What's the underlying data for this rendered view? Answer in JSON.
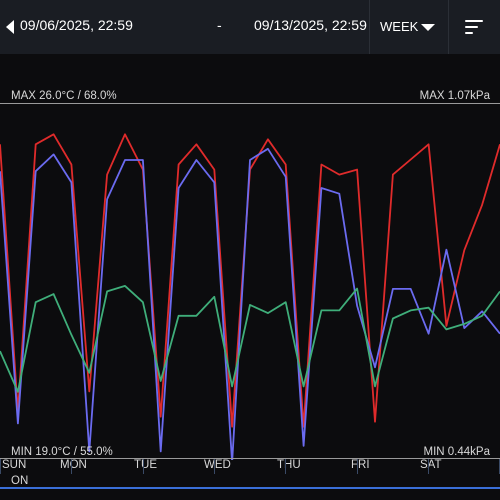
{
  "header": {
    "start_date": "09/06/2025, 22:59",
    "separator": "-",
    "end_date": "09/13/2025, 22:59",
    "range": "WEEK",
    "icons": {
      "back": "chevron-left-icon",
      "range": "caret-down-icon",
      "menu": "sort-lines-icon"
    }
  },
  "scale": {
    "max_left": "MAX 26.0°C / 68.0%",
    "max_right": "MAX 1.07kPa",
    "min_left": "MIN 19.0°C / 55.0%",
    "min_right": "MIN 0.44kPa"
  },
  "days": [
    "SUN",
    "MON",
    "TUE",
    "WED",
    "THU",
    "FRI",
    "SAT"
  ],
  "status": {
    "label": "ON",
    "color": "#3a6fd8"
  },
  "colors": {
    "temperature": "#e02b2b",
    "vpd": "#6b6bf0",
    "humidity": "#3fae7a",
    "background": "#0c0c0e"
  },
  "chart_data": {
    "type": "line",
    "x": [
      0,
      6,
      12,
      18,
      24,
      30,
      36,
      42,
      48,
      54,
      60,
      66,
      72,
      78,
      84,
      90,
      96,
      102,
      108,
      114,
      120,
      126,
      132,
      138,
      144,
      150,
      156,
      162,
      168
    ],
    "xlabel": "",
    "series": [
      {
        "values": [
          25.2,
          19.9,
          25.2,
          25.4,
          24.8,
          20.3,
          24.6,
          25.4,
          24.7,
          19.8,
          24.8,
          25.2,
          24.7,
          19.6,
          24.7,
          25.3,
          24.8,
          19.6,
          24.8,
          24.6,
          24.7,
          19.7,
          24.6,
          24.9,
          25.2,
          21.6,
          23.1,
          24.0,
          25.2
        ]
      },
      {
        "values": [
          0.95,
          0.5,
          0.95,
          0.98,
          0.93,
          0.45,
          0.9,
          0.97,
          0.97,
          0.45,
          0.92,
          0.97,
          0.93,
          0.43,
          0.97,
          0.99,
          0.94,
          0.46,
          0.92,
          0.91,
          0.71,
          0.6,
          0.74,
          0.74,
          0.66,
          0.81,
          0.67,
          0.7,
          0.66
        ]
      },
      {
        "values": [
          58.9,
          57.4,
          60.7,
          61.0,
          59.5,
          58.1,
          61.1,
          61.3,
          60.7,
          57.8,
          60.2,
          60.2,
          60.9,
          57.6,
          60.6,
          60.3,
          60.7,
          57.6,
          60.4,
          60.4,
          61.2,
          57.6,
          60.1,
          60.4,
          60.5,
          59.7,
          59.9,
          60.2,
          61.1
        ]
      }
    ]
  }
}
